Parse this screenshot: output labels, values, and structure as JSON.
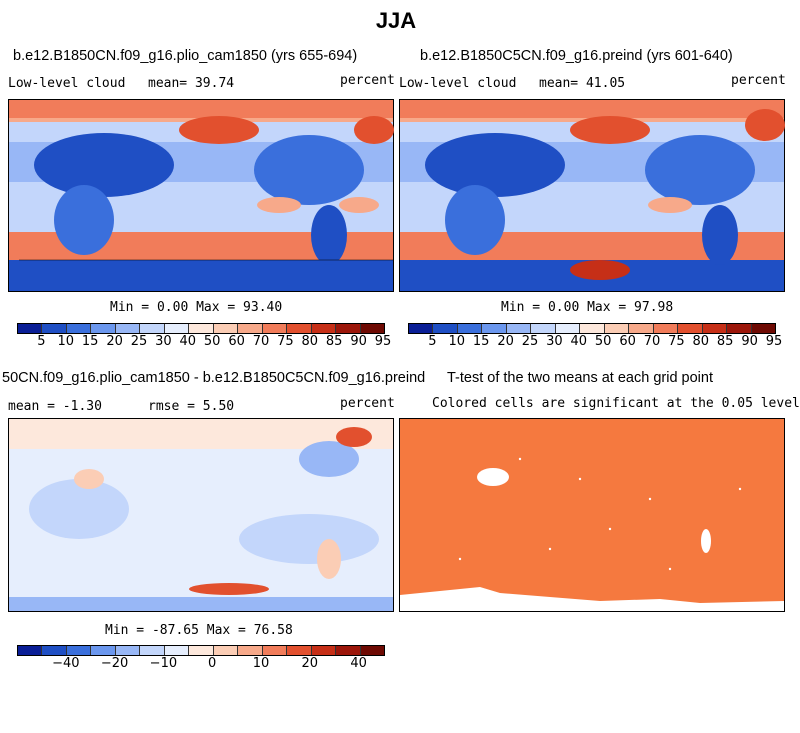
{
  "figure": {
    "title": "JJA"
  },
  "panels": {
    "p1": {
      "title": "b.e12.B1850CN.f09_g16.plio_cam1850 (yrs 655-694)",
      "label": "Low-level cloud",
      "mean": "mean=  39.74",
      "units": "percent",
      "minmax": "Min =   0.00 Max =  93.40"
    },
    "p2": {
      "title": "b.e12.B1850C5CN.f09_g16.preind (yrs 601-640)",
      "label": "Low-level cloud",
      "mean": "mean=  41.05",
      "units": "percent",
      "minmax": "Min =   0.00 Max =  97.98"
    },
    "p3": {
      "title": "50CN.f09_g16.plio_cam1850 - b.e12.B1850C5CN.f09_g16.preind",
      "mean": "mean = -1.30",
      "rmse": "rmse =   5.50",
      "units": "percent",
      "minmax": "Min = -87.65 Max =  76.58"
    },
    "p4": {
      "title": "T-test of the two means at each grid point",
      "note": "Colored cells are significant at the 0.05 level"
    }
  },
  "colorbars": {
    "abs": {
      "colors": [
        "#0a1e96",
        "#1f4fc4",
        "#3a6fdc",
        "#6b97ee",
        "#98b7f6",
        "#c3d6fb",
        "#e6eefd",
        "#fde8dc",
        "#fbcdb5",
        "#f7a98a",
        "#f17c5a",
        "#e2502e",
        "#c62f17",
        "#9c160a",
        "#6e0a03"
      ],
      "labels": [
        "5",
        "10",
        "15",
        "20",
        "25",
        "30",
        "40",
        "50",
        "60",
        "70",
        "75",
        "80",
        "85",
        "90",
        "95"
      ]
    },
    "diff": {
      "colors": [
        "#0a1e96",
        "#1f4fc4",
        "#3a6fdc",
        "#6b97ee",
        "#98b7f6",
        "#c3d6fb",
        "#e6eefd",
        "#fde8dc",
        "#fbcdb5",
        "#f7a98a",
        "#f17c5a",
        "#e2502e",
        "#c62f17",
        "#9c160a",
        "#6e0a03"
      ],
      "labels": [
        "−40",
        "−20",
        "−10",
        "0",
        "10",
        "20",
        "40"
      ]
    }
  }
}
